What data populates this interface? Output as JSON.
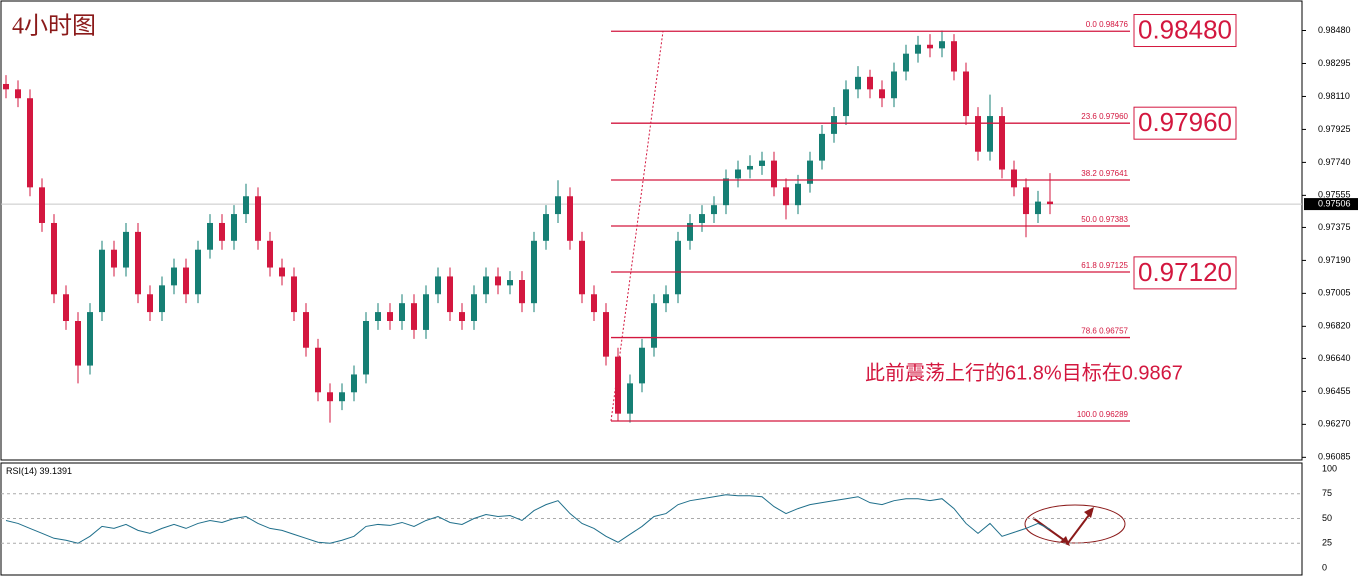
{
  "chart_data": [
    {
      "type": "candlestick",
      "title": "4小时图",
      "up_color": "#167f74",
      "down_color": "#d3173f",
      "fib_color": "#d3173f",
      "ylim": [
        0.9607,
        0.9864
      ],
      "yticks": [
        {
          "value": 0.9848,
          "label": "0.98480"
        },
        0.98295,
        {
          "value": 0.9811,
          "label": "0.98110"
        },
        0.97925,
        {
          "value": 0.9774,
          "label": "0.97740"
        },
        0.97555,
        0.97375,
        {
          "value": 0.9719,
          "label": "0.97190"
        },
        0.97005,
        {
          "value": 0.9682,
          "label": "0.96820"
        },
        {
          "value": 0.9664,
          "label": "0.96640"
        },
        0.96455,
        {
          "value": 0.9627,
          "label": "0.96270"
        },
        0.96085
      ],
      "last_price": 0.97506,
      "open": [
        0.9818,
        0.9815,
        0.981,
        0.976,
        0.974,
        0.97,
        0.9685,
        0.966,
        0.969,
        0.9725,
        0.9715,
        0.9735,
        0.97,
        0.969,
        0.9705,
        0.9715,
        0.97,
        0.9725,
        0.974,
        0.973,
        0.9745,
        0.9755,
        0.973,
        0.9715,
        0.971,
        0.969,
        0.967,
        0.9645,
        0.964,
        0.9645,
        0.9655,
        0.9685,
        0.969,
        0.9685,
        0.9695,
        0.968,
        0.97,
        0.971,
        0.969,
        0.9685,
        0.97,
        0.971,
        0.9705,
        0.9708,
        0.9695,
        0.973,
        0.9745,
        0.9755,
        0.973,
        0.97,
        0.969,
        0.9665,
        0.9633,
        0.965,
        0.967,
        0.9695,
        0.97,
        0.973,
        0.974,
        0.9745,
        0.975,
        0.9765,
        0.977,
        0.9772,
        0.9775,
        0.976,
        0.975,
        0.9762,
        0.9775,
        0.979,
        0.98,
        0.9815,
        0.9822,
        0.9815,
        0.981,
        0.9825,
        0.9835,
        0.984,
        0.9838,
        0.9842,
        0.9825,
        0.98,
        0.978,
        0.98,
        0.977,
        0.976,
        0.9745,
        0.9752
      ],
      "high": [
        0.9823,
        0.982,
        0.9815,
        0.9765,
        0.9745,
        0.9705,
        0.969,
        0.9695,
        0.973,
        0.973,
        0.974,
        0.974,
        0.9705,
        0.971,
        0.972,
        0.972,
        0.973,
        0.9745,
        0.9745,
        0.975,
        0.9762,
        0.976,
        0.9735,
        0.972,
        0.9715,
        0.9695,
        0.9675,
        0.965,
        0.965,
        0.966,
        0.969,
        0.9695,
        0.9695,
        0.97,
        0.97,
        0.9705,
        0.9715,
        0.9715,
        0.9695,
        0.9705,
        0.9715,
        0.9715,
        0.9713,
        0.9713,
        0.9735,
        0.975,
        0.9764,
        0.976,
        0.9735,
        0.9705,
        0.9695,
        0.967,
        0.9655,
        0.9675,
        0.97,
        0.9705,
        0.9735,
        0.9745,
        0.975,
        0.9755,
        0.977,
        0.9775,
        0.9778,
        0.978,
        0.978,
        0.9765,
        0.9767,
        0.978,
        0.9795,
        0.9805,
        0.982,
        0.9828,
        0.9826,
        0.982,
        0.983,
        0.984,
        0.9845,
        0.9846,
        0.9848,
        0.9846,
        0.983,
        0.9805,
        0.9812,
        0.9805,
        0.9775,
        0.9765,
        0.9758,
        0.9768
      ],
      "low": [
        0.981,
        0.9805,
        0.9755,
        0.9735,
        0.9695,
        0.968,
        0.965,
        0.9655,
        0.9685,
        0.971,
        0.971,
        0.9695,
        0.9685,
        0.9685,
        0.97,
        0.9695,
        0.9695,
        0.972,
        0.9725,
        0.9725,
        0.974,
        0.9725,
        0.971,
        0.9705,
        0.9685,
        0.9665,
        0.964,
        0.9628,
        0.9635,
        0.964,
        0.965,
        0.968,
        0.968,
        0.968,
        0.9675,
        0.9675,
        0.9695,
        0.9685,
        0.968,
        0.968,
        0.9695,
        0.97,
        0.97,
        0.969,
        0.969,
        0.9725,
        0.974,
        0.9725,
        0.9695,
        0.9685,
        0.966,
        0.9629,
        0.9628,
        0.9645,
        0.9665,
        0.969,
        0.9695,
        0.9725,
        0.9735,
        0.974,
        0.9745,
        0.976,
        0.9765,
        0.9767,
        0.9755,
        0.9742,
        0.9745,
        0.9757,
        0.977,
        0.9785,
        0.9795,
        0.981,
        0.981,
        0.9805,
        0.9805,
        0.982,
        0.983,
        0.9833,
        0.9833,
        0.982,
        0.9795,
        0.9775,
        0.9775,
        0.9765,
        0.9755,
        0.9732,
        0.974,
        0.9745
      ],
      "close": [
        0.9815,
        0.981,
        0.976,
        0.974,
        0.97,
        0.9685,
        0.966,
        0.969,
        0.9725,
        0.9715,
        0.9735,
        0.97,
        0.969,
        0.9705,
        0.9715,
        0.97,
        0.9725,
        0.974,
        0.973,
        0.9745,
        0.9755,
        0.973,
        0.9715,
        0.971,
        0.969,
        0.967,
        0.9645,
        0.964,
        0.9645,
        0.9655,
        0.9685,
        0.969,
        0.9685,
        0.9695,
        0.968,
        0.97,
        0.971,
        0.969,
        0.9685,
        0.97,
        0.971,
        0.9705,
        0.9708,
        0.9695,
        0.973,
        0.9745,
        0.9755,
        0.973,
        0.97,
        0.969,
        0.9665,
        0.9633,
        0.965,
        0.967,
        0.9695,
        0.97,
        0.973,
        0.974,
        0.9745,
        0.975,
        0.9765,
        0.977,
        0.9772,
        0.9775,
        0.976,
        0.975,
        0.9762,
        0.9775,
        0.979,
        0.98,
        0.9815,
        0.9822,
        0.9815,
        0.981,
        0.9825,
        0.9835,
        0.984,
        0.9838,
        0.9842,
        0.9825,
        0.98,
        0.978,
        0.98,
        0.977,
        0.976,
        0.9745,
        0.9752,
        0.97506
      ],
      "fib_levels": [
        {
          "ratio": "0.0",
          "value": 0.98476,
          "label": "0.98476"
        },
        {
          "ratio": "23.6",
          "value": 0.9796,
          "label": "0.97960"
        },
        {
          "ratio": "38.2",
          "value": 0.97641,
          "label": "0.97641"
        },
        {
          "ratio": "50.0",
          "value": 0.97383,
          "label": "0.97383"
        },
        {
          "ratio": "61.8",
          "value": 0.97125,
          "label": "0.97125"
        },
        {
          "ratio": "78.6",
          "value": 0.96757,
          "label": "0.96757"
        },
        {
          "ratio": "100.0",
          "value": 0.96289,
          "label": "0.96289"
        }
      ],
      "targets": [
        {
          "value": 0.9848,
          "label": "0.98480"
        },
        {
          "value": 0.9796,
          "label": "0.97960"
        },
        {
          "value": 0.9712,
          "label": "0.97120"
        }
      ],
      "annotation": "此前震荡上行的61.8%目标在0.9867"
    },
    {
      "type": "line",
      "title": "RSI(14)",
      "color": "#1f6f8b",
      "ylim": [
        0,
        100
      ],
      "yticks": [
        0,
        25,
        50,
        75,
        100
      ],
      "values": [
        48,
        45,
        40,
        35,
        30,
        28,
        25,
        32,
        42,
        40,
        44,
        38,
        35,
        40,
        44,
        40,
        45,
        48,
        46,
        50,
        52,
        45,
        40,
        38,
        34,
        30,
        26,
        25,
        28,
        32,
        42,
        44,
        43,
        46,
        42,
        48,
        52,
        46,
        44,
        50,
        54,
        52,
        53,
        48,
        58,
        64,
        68,
        55,
        45,
        40,
        32,
        26,
        34,
        42,
        52,
        55,
        64,
        68,
        70,
        72,
        74,
        73,
        73,
        72,
        62,
        55,
        60,
        64,
        66,
        68,
        70,
        72,
        66,
        64,
        68,
        70,
        70,
        68,
        70,
        60,
        45,
        35,
        45,
        32,
        36,
        40,
        45,
        39.1391
      ]
    }
  ]
}
